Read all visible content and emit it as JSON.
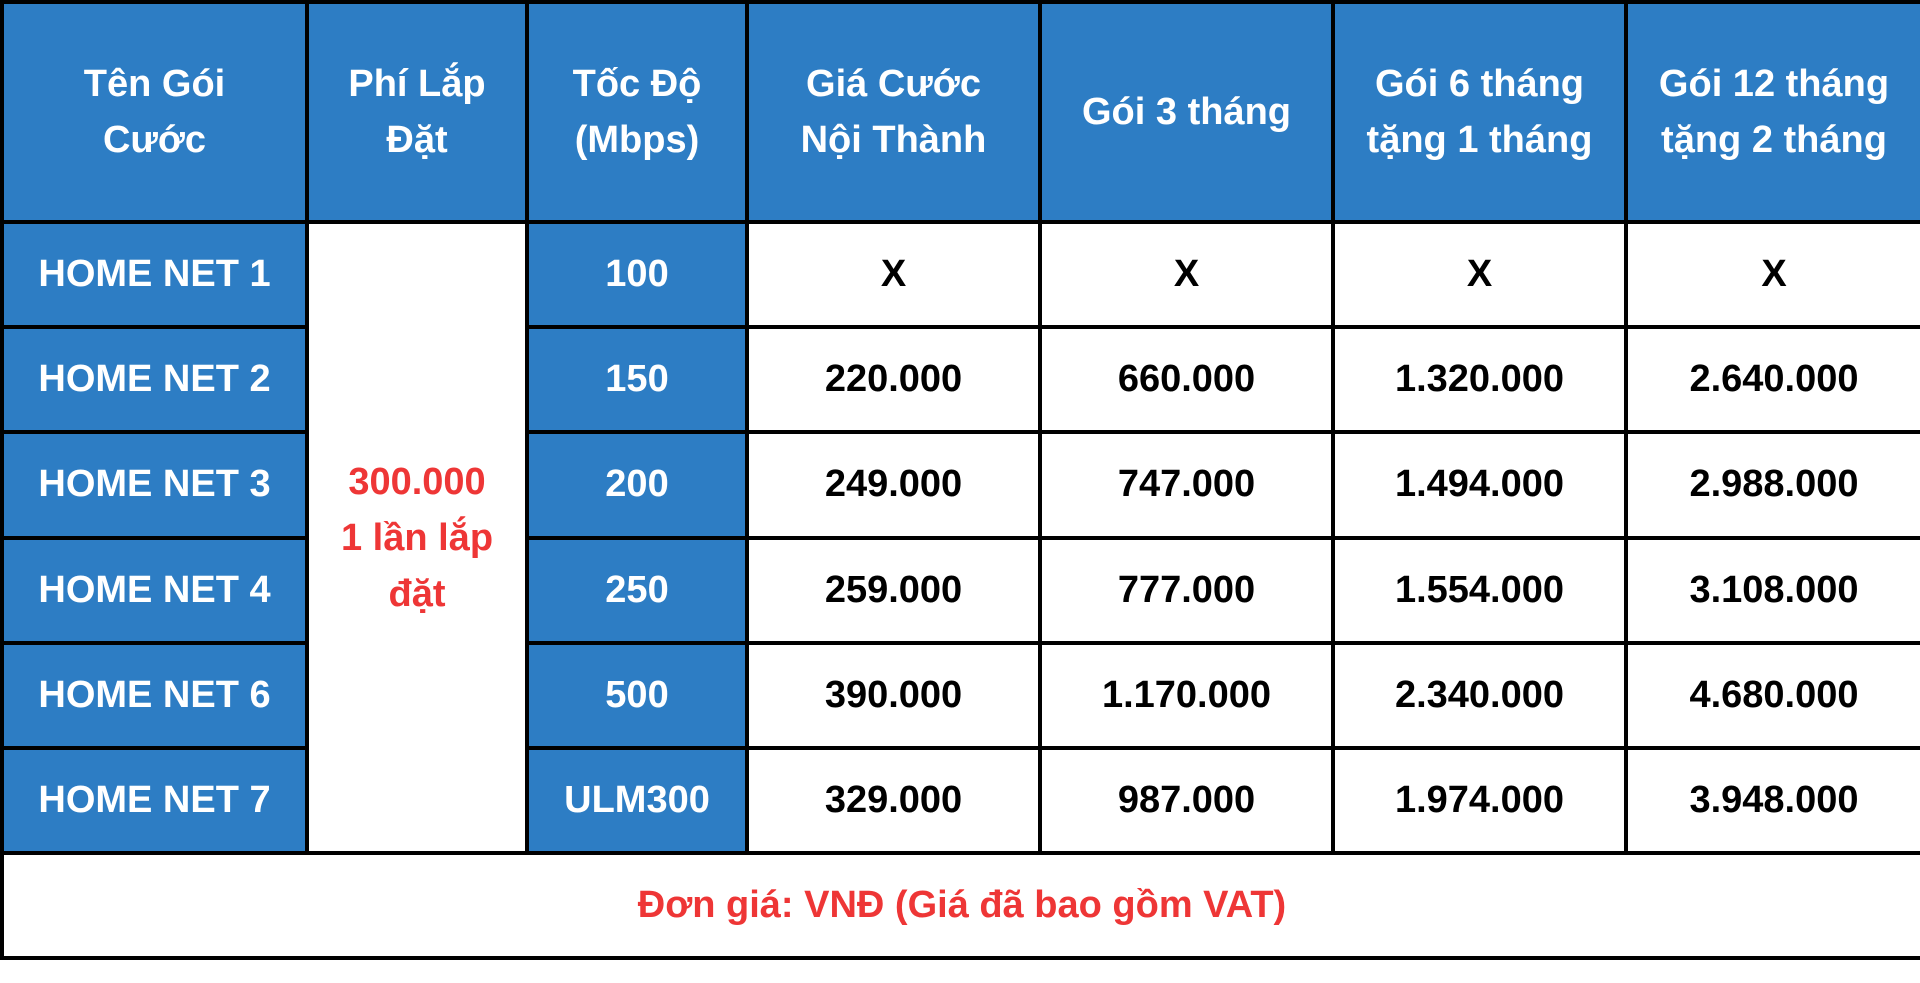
{
  "table": {
    "headers": [
      [
        "Tên Gói",
        "Cước"
      ],
      [
        "Phí Lắp",
        "Đặt"
      ],
      [
        "Tốc Độ",
        "(Mbps)"
      ],
      [
        "Giá Cước",
        "Nội Thành"
      ],
      [
        "Gói 3 tháng"
      ],
      [
        "Gói 6 tháng",
        "tặng 1 tháng"
      ],
      [
        "Gói 12 tháng",
        "tặng 2 tháng"
      ]
    ],
    "installation": [
      "300.000",
      "1 lần lắp",
      "đặt"
    ],
    "rows": [
      {
        "name": "HOME NET 1",
        "speed": "100",
        "city": "X",
        "m3": "X",
        "m6": "X",
        "m12": "X"
      },
      {
        "name": "HOME NET 2",
        "speed": "150",
        "city": "220.000",
        "m3": "660.000",
        "m6": "1.320.000",
        "m12": "2.640.000"
      },
      {
        "name": "HOME NET 3",
        "speed": "200",
        "city": "249.000",
        "m3": "747.000",
        "m6": "1.494.000",
        "m12": "2.988.000"
      },
      {
        "name": "HOME NET 4",
        "speed": "250",
        "city": "259.000",
        "m3": "777.000",
        "m6": "1.554.000",
        "m12": "3.108.000"
      },
      {
        "name": "HOME NET 6",
        "speed": "500",
        "city": "390.000",
        "m3": "1.170.000",
        "m6": "2.340.000",
        "m12": "4.680.000"
      },
      {
        "name": "HOME NET 7",
        "speed": "ULM300",
        "city": "329.000",
        "m3": "987.000",
        "m6": "1.974.000",
        "m12": "3.948.000"
      }
    ],
    "footer_note": "Đơn giá: VNĐ (Giá đã bao gồm VAT)"
  },
  "colors": {
    "header_blue": "#2d7dc4",
    "accent_red": "#ee3636",
    "border": "#000000"
  }
}
